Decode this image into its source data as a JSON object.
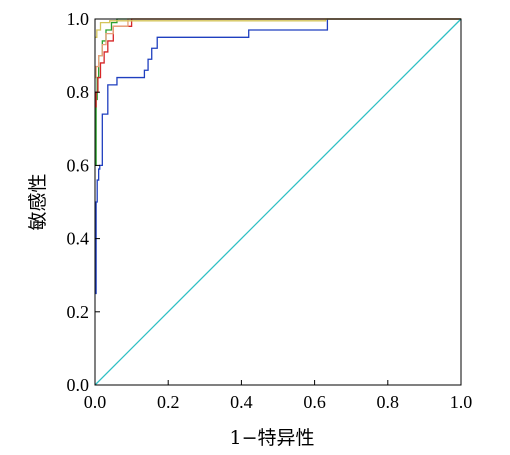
{
  "chart_data": {
    "type": "line",
    "title": "",
    "xlabel": "1−特异性",
    "ylabel": "敏感性",
    "xlim": [
      0,
      1
    ],
    "ylim": [
      0,
      1
    ],
    "x_ticks": [
      "0.0",
      "0.2",
      "0.4",
      "0.6",
      "0.8",
      "1.0"
    ],
    "y_ticks": [
      "0.0",
      "0.2",
      "0.4",
      "0.6",
      "0.8",
      "1.0"
    ],
    "grid": false,
    "legend": "none",
    "series": [
      {
        "color": "#1f3fbf",
        "x": [
          0,
          0.003,
          0.003,
          0.006,
          0.006,
          0.01,
          0.01,
          0.013,
          0.013,
          0.02,
          0.02,
          0.035,
          0.035,
          0.06,
          0.06,
          0.135,
          0.135,
          0.145,
          0.145,
          0.155,
          0.155,
          0.17,
          0.17,
          0.42,
          0.42,
          0.635,
          0.635,
          1
        ],
        "y": [
          0.25,
          0.25,
          0.5,
          0.5,
          0.56,
          0.56,
          0.59,
          0.59,
          0.6,
          0.6,
          0.74,
          0.74,
          0.82,
          0.82,
          0.84,
          0.84,
          0.86,
          0.86,
          0.89,
          0.89,
          0.92,
          0.92,
          0.95,
          0.95,
          0.97,
          0.97,
          1.0,
          1.0
        ]
      },
      {
        "color": "#2ca02c",
        "x": [
          0,
          0.003,
          0.003,
          0.006,
          0.006,
          0.01,
          0.01,
          0.02,
          0.02,
          0.03,
          0.03,
          0.045,
          0.045,
          0.06,
          0.06,
          1
        ],
        "y": [
          0.6,
          0.6,
          0.78,
          0.78,
          0.84,
          0.84,
          0.9,
          0.9,
          0.94,
          0.94,
          0.97,
          0.97,
          0.99,
          0.99,
          1.0,
          1.0
        ]
      },
      {
        "color": "#d62728",
        "x": [
          0,
          0.003,
          0.003,
          0.008,
          0.008,
          0.015,
          0.015,
          0.025,
          0.025,
          0.035,
          0.035,
          0.05,
          0.05,
          0.1,
          0.1,
          1
        ],
        "y": [
          0.76,
          0.76,
          0.8,
          0.8,
          0.84,
          0.84,
          0.88,
          0.88,
          0.91,
          0.91,
          0.94,
          0.94,
          0.98,
          0.98,
          1.0,
          1.0
        ]
      },
      {
        "color": "#e8a07a",
        "x": [
          0,
          0.003,
          0.003,
          0.01,
          0.01,
          0.02,
          0.02,
          0.03,
          0.03,
          0.05,
          0.05,
          0.09,
          0.09,
          1
        ],
        "y": [
          0.84,
          0.84,
          0.87,
          0.87,
          0.9,
          0.9,
          0.93,
          0.93,
          0.96,
          0.96,
          0.98,
          0.98,
          1.0,
          1.0
        ]
      },
      {
        "color": "#d4c45a",
        "x": [
          0,
          0.005,
          0.005,
          0.015,
          0.015,
          0.04,
          0.04,
          0.63,
          0.63,
          1
        ],
        "y": [
          0.95,
          0.95,
          0.97,
          0.97,
          0.99,
          0.99,
          0.995,
          0.995,
          1.0,
          1.0
        ]
      },
      {
        "color": "#2ebfc4",
        "x": [
          0,
          1
        ],
        "y": [
          0,
          1
        ]
      }
    ]
  }
}
